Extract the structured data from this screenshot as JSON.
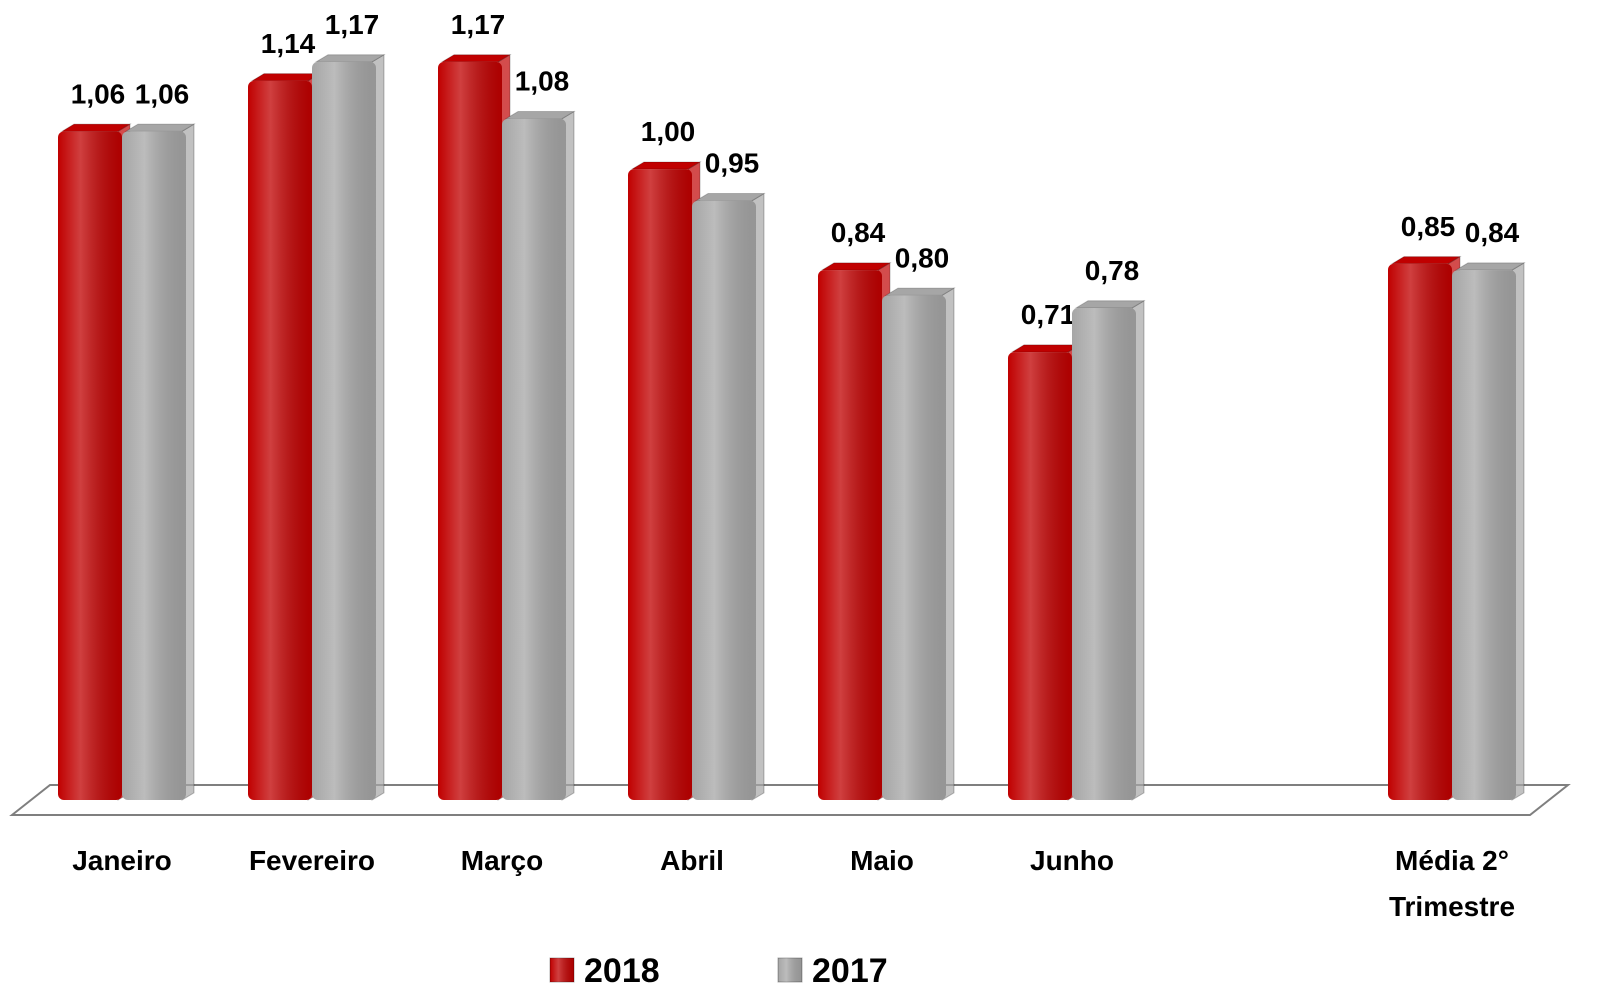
{
  "chart_data": {
    "type": "bar",
    "categories": [
      "Janeiro",
      "Fevereiro",
      "Março",
      "Abril",
      "Maio",
      "Junho",
      null,
      "Média 2° Trimestre"
    ],
    "series": [
      {
        "name": "2018",
        "color": "#c00000",
        "values": [
          1.06,
          1.14,
          1.17,
          1.0,
          0.84,
          0.71,
          null,
          0.85
        ],
        "value_labels": [
          "1,06",
          "1,14",
          "1,17",
          "1,00",
          "0,84",
          "0,71",
          null,
          "0,85"
        ]
      },
      {
        "name": "2017",
        "color": "#a6a6a6",
        "values": [
          1.06,
          1.17,
          1.08,
          0.95,
          0.8,
          0.78,
          null,
          0.84
        ],
        "value_labels": [
          "1,06",
          "1,17",
          "1,08",
          "0,95",
          "0,80",
          "0,78",
          null,
          "0,84"
        ]
      }
    ],
    "ylim": [
      0,
      1.2
    ]
  }
}
